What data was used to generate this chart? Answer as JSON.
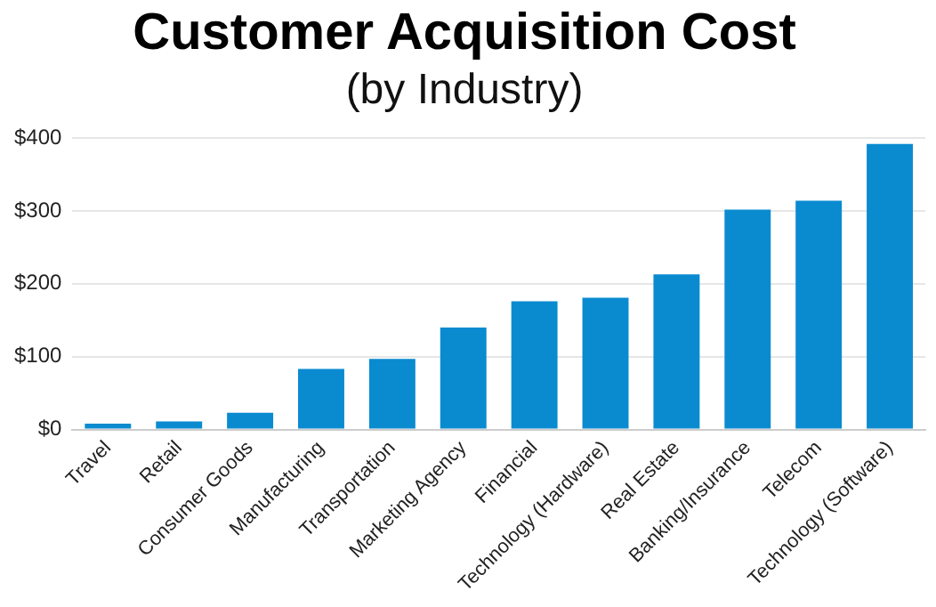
{
  "chart_data": {
    "type": "bar",
    "title": "Customer Acquisition Cost",
    "subtitle": "(by Industry)",
    "categories": [
      "Travel",
      "Retail",
      "Consumer Goods",
      "Manufacturing",
      "Transportation",
      "Marketing Agency",
      "Financial",
      "Technology (Hardware)",
      "Real Estate",
      "Banking/Insurance",
      "Telecom",
      "Technology (Software)"
    ],
    "values": [
      8,
      11,
      23,
      83,
      97,
      140,
      176,
      181,
      213,
      302,
      314,
      392
    ],
    "color": "#0a8bd0",
    "ylim": [
      0,
      400
    ],
    "yticks": [
      {
        "value": 0,
        "label": "$0"
      },
      {
        "value": 100,
        "label": "$100"
      },
      {
        "value": 200,
        "label": "$200"
      },
      {
        "value": 300,
        "label": "$300"
      },
      {
        "value": 400,
        "label": "$400"
      }
    ],
    "grid": "y",
    "legend": false
  }
}
